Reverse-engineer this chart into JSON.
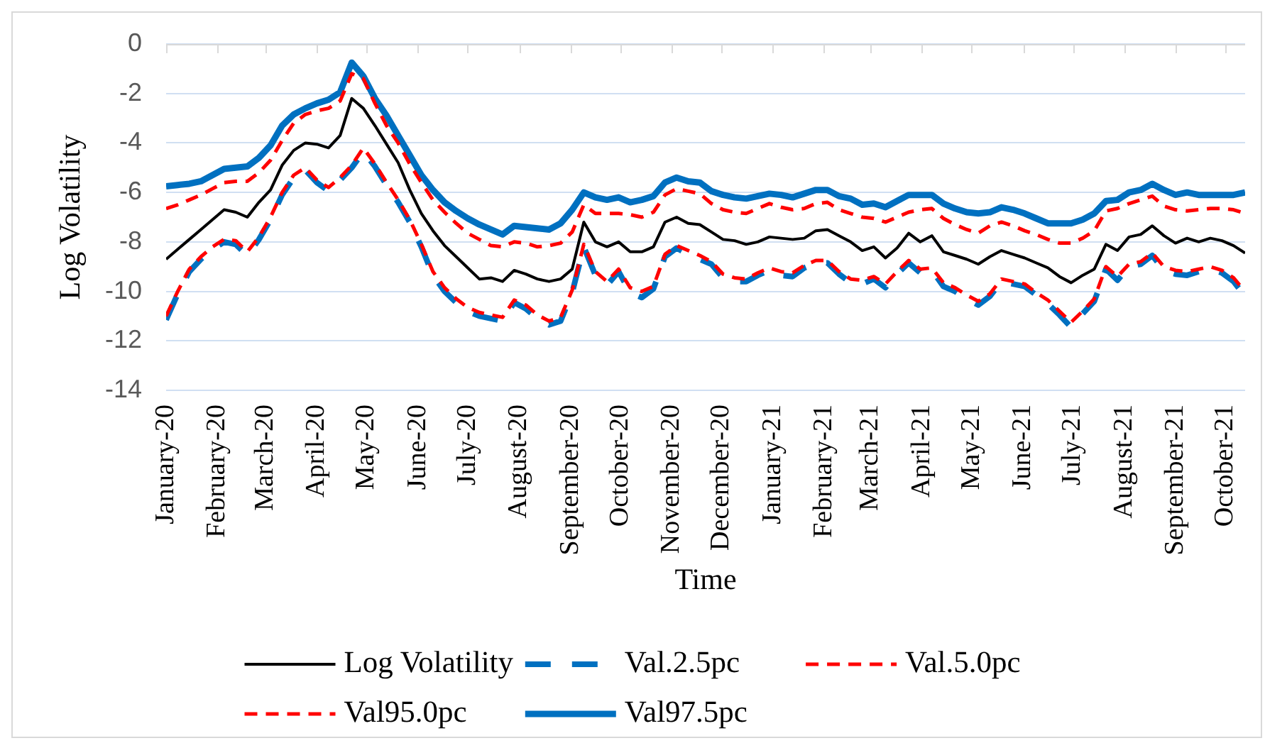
{
  "chart_data": {
    "type": "line",
    "xlabel": "Time",
    "ylabel": "Log Volatility",
    "x": [
      "2020-01-01",
      "2020-01-08",
      "2020-01-15",
      "2020-01-22",
      "2020-01-29",
      "2020-02-05",
      "2020-02-12",
      "2020-02-19",
      "2020-02-26",
      "2020-03-04",
      "2020-03-11",
      "2020-03-18",
      "2020-03-25",
      "2020-04-01",
      "2020-04-08",
      "2020-04-15",
      "2020-04-22",
      "2020-04-29",
      "2020-05-06",
      "2020-05-13",
      "2020-05-20",
      "2020-05-27",
      "2020-06-03",
      "2020-06-10",
      "2020-06-17",
      "2020-06-24",
      "2020-07-01",
      "2020-07-08",
      "2020-07-15",
      "2020-07-22",
      "2020-07-29",
      "2020-08-05",
      "2020-08-12",
      "2020-08-19",
      "2020-08-26",
      "2020-09-02",
      "2020-09-09",
      "2020-09-16",
      "2020-09-23",
      "2020-09-30",
      "2020-10-07",
      "2020-10-14",
      "2020-10-21",
      "2020-10-28",
      "2020-11-04",
      "2020-11-11",
      "2020-11-18",
      "2020-11-25",
      "2020-12-02",
      "2020-12-09",
      "2020-12-16",
      "2020-12-23",
      "2020-12-30",
      "2021-01-06",
      "2021-01-13",
      "2021-01-20",
      "2021-01-27",
      "2021-02-03",
      "2021-02-10",
      "2021-02-17",
      "2021-02-24",
      "2021-03-03",
      "2021-03-10",
      "2021-03-17",
      "2021-03-24",
      "2021-03-31",
      "2021-04-07",
      "2021-04-14",
      "2021-04-21",
      "2021-04-28",
      "2021-05-05",
      "2021-05-12",
      "2021-05-19",
      "2021-05-26",
      "2021-06-02",
      "2021-06-09",
      "2021-06-16",
      "2021-06-23",
      "2021-06-30",
      "2021-07-07",
      "2021-07-14",
      "2021-07-21",
      "2021-07-28",
      "2021-08-04",
      "2021-08-11",
      "2021-08-18",
      "2021-08-25",
      "2021-09-01",
      "2021-09-08",
      "2021-09-15",
      "2021-09-22",
      "2021-09-29",
      "2021-10-06",
      "2021-10-13"
    ],
    "series": [
      {
        "name": "Log Volatility",
        "color": "#000000",
        "line_style": "solid",
        "values": [
          -8.7,
          -8.3,
          -7.9,
          -7.5,
          -7.1,
          -6.7,
          -6.8,
          -7.0,
          -6.4,
          -5.9,
          -4.9,
          -4.3,
          -4.0,
          -4.05,
          -4.2,
          -3.7,
          -2.2,
          -2.6,
          -3.3,
          -4.05,
          -4.8,
          -5.9,
          -6.85,
          -7.55,
          -8.15,
          -8.6,
          -9.05,
          -9.5,
          -9.45,
          -9.6,
          -9.15,
          -9.3,
          -9.5,
          -9.6,
          -9.5,
          -9.1,
          -7.2,
          -8.0,
          -8.2,
          -8.0,
          -8.4,
          -8.4,
          -8.2,
          -7.2,
          -7.0,
          -7.25,
          -7.3,
          -7.6,
          -7.9,
          -7.95,
          -8.1,
          -8.0,
          -7.8,
          -7.85,
          -7.9,
          -7.85,
          -7.55,
          -7.5,
          -7.75,
          -8.0,
          -8.35,
          -8.2,
          -8.65,
          -8.25,
          -7.65,
          -8.0,
          -7.75,
          -8.4,
          -8.55,
          -8.7,
          -8.9,
          -8.6,
          -8.35,
          -8.5,
          -8.65,
          -8.85,
          -9.05,
          -9.4,
          -9.65,
          -9.35,
          -9.1,
          -8.1,
          -8.35,
          -7.8,
          -7.7,
          -7.35,
          -7.75,
          -8.05,
          -7.85,
          -8.0,
          -7.85,
          -7.95,
          -8.15,
          -8.45
        ]
      },
      {
        "name": "Val.2.5pc",
        "color": "#0070c0",
        "line_style": "dashed",
        "values": [
          -11.15,
          -10.1,
          -9.2,
          -8.7,
          -8.3,
          -8.0,
          -8.1,
          -8.55,
          -7.9,
          -7.1,
          -6.1,
          -5.4,
          -5.1,
          -5.6,
          -5.95,
          -5.5,
          -5.0,
          -4.35,
          -4.95,
          -5.7,
          -6.4,
          -7.2,
          -8.2,
          -9.35,
          -10.0,
          -10.45,
          -10.8,
          -11.0,
          -11.1,
          -11.2,
          -10.45,
          -10.7,
          -11.1,
          -11.35,
          -11.2,
          -10.05,
          -8.2,
          -9.35,
          -9.75,
          -9.2,
          -10.05,
          -10.25,
          -9.9,
          -8.6,
          -8.25,
          -8.5,
          -8.7,
          -8.9,
          -9.45,
          -9.6,
          -9.6,
          -9.35,
          -9.15,
          -9.35,
          -9.4,
          -9.05,
          -8.85,
          -8.85,
          -9.3,
          -9.65,
          -9.7,
          -9.5,
          -9.85,
          -9.3,
          -8.85,
          -9.25,
          -9.15,
          -9.8,
          -10.0,
          -10.3,
          -10.55,
          -10.2,
          -9.6,
          -9.7,
          -9.8,
          -10.15,
          -10.5,
          -10.95,
          -11.45,
          -10.9,
          -10.4,
          -9.1,
          -9.55,
          -9.0,
          -8.9,
          -8.55,
          -9.15,
          -9.3,
          -9.35,
          -9.2,
          -9.1,
          -9.25,
          -9.6,
          -10.2
        ]
      },
      {
        "name": "Val.5.0pc",
        "color": "#ff0000",
        "line_style": "dashed",
        "values": [
          -11.0,
          -10.0,
          -9.1,
          -8.6,
          -8.2,
          -7.9,
          -7.95,
          -8.4,
          -7.8,
          -7.0,
          -6.0,
          -5.3,
          -5.0,
          -5.5,
          -5.8,
          -5.4,
          -4.9,
          -4.2,
          -4.85,
          -5.6,
          -6.3,
          -7.1,
          -8.1,
          -9.2,
          -9.85,
          -10.3,
          -10.65,
          -10.85,
          -10.95,
          -11.05,
          -10.35,
          -10.55,
          -10.95,
          -11.2,
          -11.05,
          -9.95,
          -8.1,
          -9.2,
          -9.6,
          -9.1,
          -9.85,
          -10.0,
          -9.8,
          -8.5,
          -8.15,
          -8.35,
          -8.55,
          -8.8,
          -9.3,
          -9.45,
          -9.5,
          -9.25,
          -9.05,
          -9.2,
          -9.25,
          -8.95,
          -8.75,
          -8.75,
          -9.2,
          -9.5,
          -9.55,
          -9.4,
          -9.7,
          -9.2,
          -8.75,
          -9.1,
          -9.05,
          -9.65,
          -9.85,
          -10.15,
          -10.4,
          -10.1,
          -9.5,
          -9.6,
          -9.7,
          -10.05,
          -10.35,
          -10.8,
          -11.25,
          -10.8,
          -10.3,
          -9.0,
          -9.4,
          -8.9,
          -8.8,
          -8.45,
          -9.0,
          -9.15,
          -9.2,
          -9.1,
          -9.0,
          -9.15,
          -9.45,
          -10.0
        ]
      },
      {
        "name": "Val95.0pc",
        "color": "#ff0000",
        "line_style": "dashed",
        "values": [
          -6.65,
          -6.5,
          -6.3,
          -6.1,
          -5.85,
          -5.6,
          -5.55,
          -5.55,
          -5.2,
          -4.7,
          -3.9,
          -3.2,
          -2.85,
          -2.7,
          -2.6,
          -2.3,
          -1.2,
          -1.4,
          -2.4,
          -3.3,
          -4.0,
          -4.85,
          -5.6,
          -6.3,
          -6.8,
          -7.25,
          -7.65,
          -7.9,
          -8.15,
          -8.2,
          -8.0,
          -8.05,
          -8.2,
          -8.15,
          -8.05,
          -7.6,
          -6.5,
          -6.85,
          -6.85,
          -6.85,
          -6.9,
          -7.0,
          -6.8,
          -6.1,
          -5.85,
          -5.95,
          -6.05,
          -6.45,
          -6.7,
          -6.8,
          -6.85,
          -6.65,
          -6.45,
          -6.6,
          -6.7,
          -6.65,
          -6.45,
          -6.4,
          -6.7,
          -6.85,
          -7.0,
          -7.05,
          -7.2,
          -7.0,
          -6.8,
          -6.7,
          -6.65,
          -7.05,
          -7.3,
          -7.5,
          -7.65,
          -7.35,
          -7.2,
          -7.35,
          -7.55,
          -7.7,
          -7.9,
          -8.05,
          -8.05,
          -7.85,
          -7.55,
          -6.75,
          -6.65,
          -6.45,
          -6.3,
          -6.15,
          -6.55,
          -6.7,
          -6.75,
          -6.7,
          -6.65,
          -6.65,
          -6.7,
          -6.85
        ]
      },
      {
        "name": "Val97.5pc",
        "color": "#0070c0",
        "line_style": "solid",
        "values": [
          -5.75,
          -5.7,
          -5.65,
          -5.55,
          -5.3,
          -5.05,
          -5.0,
          -4.95,
          -4.6,
          -4.1,
          -3.3,
          -2.85,
          -2.6,
          -2.4,
          -2.25,
          -1.95,
          -0.75,
          -1.3,
          -2.2,
          -2.9,
          -3.7,
          -4.5,
          -5.3,
          -5.9,
          -6.4,
          -6.75,
          -7.05,
          -7.3,
          -7.5,
          -7.7,
          -7.35,
          -7.4,
          -7.45,
          -7.5,
          -7.25,
          -6.7,
          -6.0,
          -6.2,
          -6.3,
          -6.2,
          -6.4,
          -6.3,
          -6.15,
          -5.6,
          -5.4,
          -5.55,
          -5.6,
          -5.95,
          -6.1,
          -6.2,
          -6.25,
          -6.15,
          -6.05,
          -6.1,
          -6.2,
          -6.05,
          -5.9,
          -5.9,
          -6.15,
          -6.25,
          -6.5,
          -6.45,
          -6.6,
          -6.35,
          -6.1,
          -6.1,
          -6.1,
          -6.45,
          -6.65,
          -6.8,
          -6.85,
          -6.8,
          -6.6,
          -6.7,
          -6.85,
          -7.05,
          -7.25,
          -7.25,
          -7.25,
          -7.1,
          -6.85,
          -6.35,
          -6.3,
          -6.0,
          -5.9,
          -5.65,
          -5.9,
          -6.1,
          -6.0,
          -6.1,
          -6.1,
          -6.1,
          -6.1,
          -6.0
        ]
      }
    ],
    "xlim": [
      "2020-01-01",
      "2021-10-13"
    ],
    "xticks": [
      {
        "value": "2020-01-01",
        "label": "January-20"
      },
      {
        "value": "2020-02-01",
        "label": "February-20"
      },
      {
        "value": "2020-03-01",
        "label": "March-20"
      },
      {
        "value": "2020-04-01",
        "label": "April-20"
      },
      {
        "value": "2020-05-01",
        "label": "May-20"
      },
      {
        "value": "2020-06-01",
        "label": "June-20"
      },
      {
        "value": "2020-07-01",
        "label": "July-20"
      },
      {
        "value": "2020-08-01",
        "label": "August-20"
      },
      {
        "value": "2020-09-01",
        "label": "September-20"
      },
      {
        "value": "2020-10-01",
        "label": "October-20"
      },
      {
        "value": "2020-11-01",
        "label": "November-20"
      },
      {
        "value": "2020-12-01",
        "label": "December-20"
      },
      {
        "value": "2021-01-01",
        "label": "January-21"
      },
      {
        "value": "2021-02-01",
        "label": "February-21"
      },
      {
        "value": "2021-03-01",
        "label": "March-21"
      },
      {
        "value": "2021-04-01",
        "label": "April-21"
      },
      {
        "value": "2021-05-01",
        "label": "May-21"
      },
      {
        "value": "2021-06-01",
        "label": "June-21"
      },
      {
        "value": "2021-07-01",
        "label": "July-21"
      },
      {
        "value": "2021-08-01",
        "label": "August-21"
      },
      {
        "value": "2021-09-01",
        "label": "September-21"
      },
      {
        "value": "2021-10-01",
        "label": "October-21"
      }
    ],
    "ylim": [
      -14,
      0
    ],
    "yticks": [
      0,
      -2,
      -4,
      -6,
      -8,
      -10,
      -12,
      -14
    ],
    "grid": "y",
    "legend": "bottom"
  }
}
